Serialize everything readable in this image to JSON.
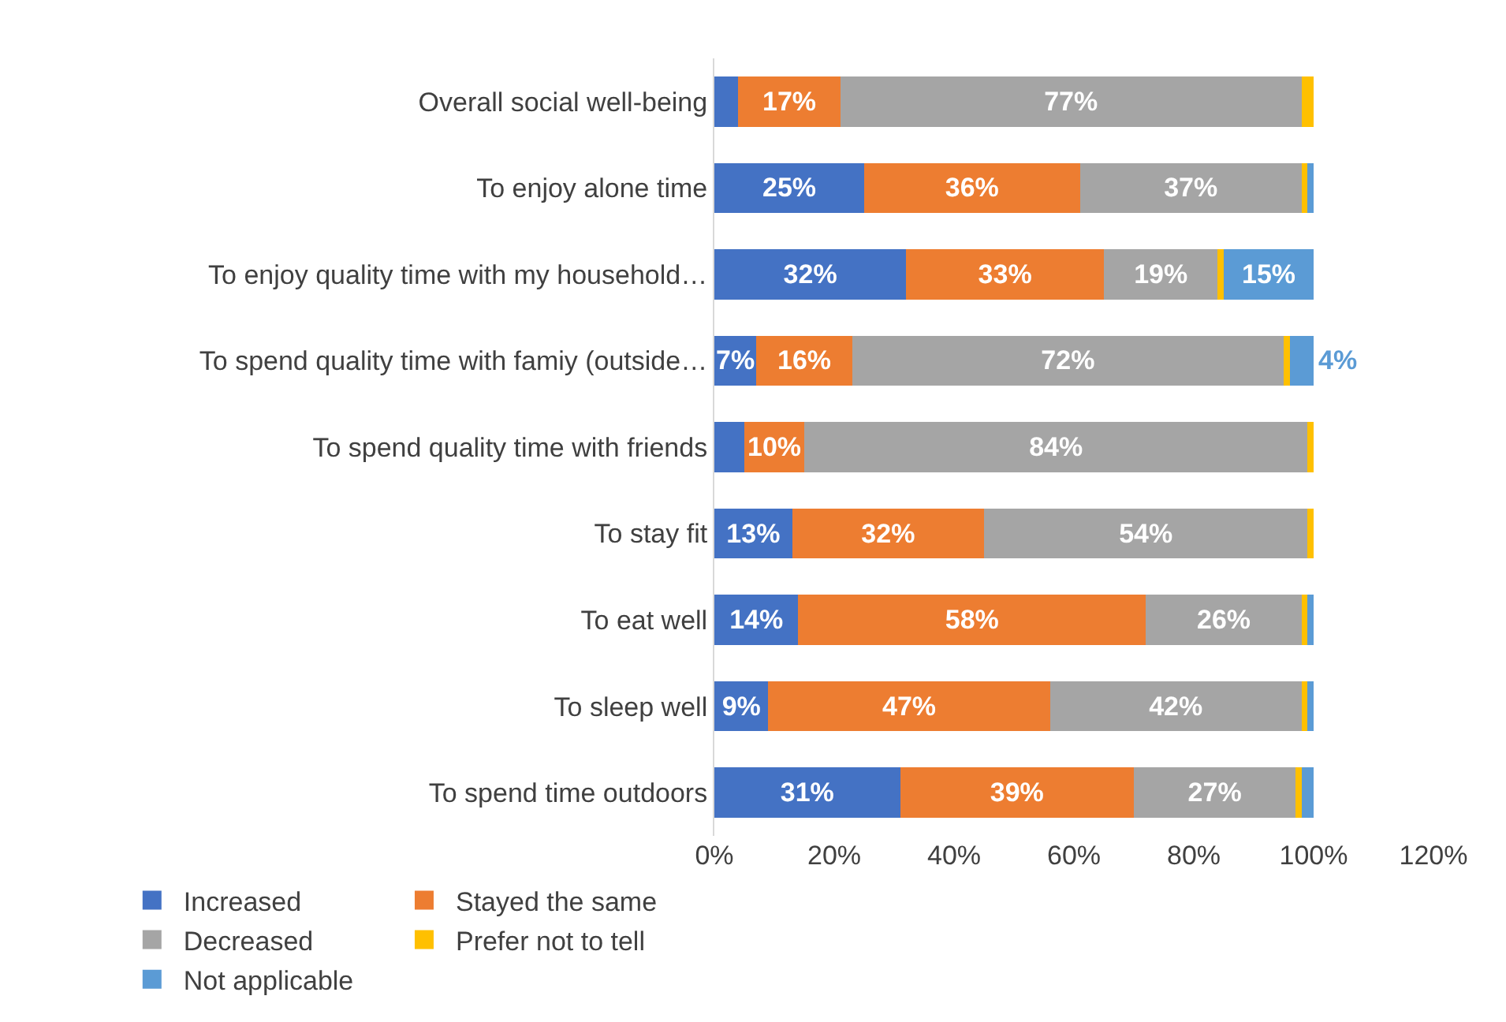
{
  "chart_data": {
    "type": "bar",
    "orientation": "horizontal",
    "stacked": true,
    "categories": [
      "Overall social well-being",
      "To enjoy alone time",
      "To enjoy quality time with my household…",
      "To spend quality time with famiy (outside…",
      "To spend quality time with friends",
      "To stay fit",
      "To eat well",
      "To sleep well",
      "To spend time outdoors"
    ],
    "series": [
      {
        "name": "Increased",
        "color": "#4472c4",
        "values": [
          4,
          25,
          32,
          7,
          5,
          13,
          14,
          9,
          31
        ],
        "value_labels": [
          null,
          "25%",
          "32%",
          "7%",
          null,
          "13%",
          "14%",
          "9%",
          "31%"
        ]
      },
      {
        "name": "Stayed the same",
        "color": "#ed7d31",
        "values": [
          17,
          36,
          33,
          16,
          10,
          32,
          58,
          47,
          39
        ],
        "value_labels": [
          "17%",
          "36%",
          "33%",
          "16%",
          "10%",
          "32%",
          "58%",
          "47%",
          "39%"
        ]
      },
      {
        "name": "Decreased",
        "color": "#a5a5a5",
        "values": [
          77,
          37,
          19,
          72,
          84,
          54,
          26,
          42,
          27
        ],
        "value_labels": [
          "77%",
          "37%",
          "19%",
          "72%",
          "84%",
          "54%",
          "26%",
          "42%",
          "27%"
        ]
      },
      {
        "name": "Prefer not to tell",
        "color": "#ffc000",
        "values": [
          2,
          1,
          1,
          1,
          1,
          1,
          1,
          1,
          1
        ],
        "value_labels": [
          null,
          null,
          null,
          null,
          null,
          null,
          null,
          null,
          null
        ]
      },
      {
        "name": "Not applicable",
        "color": "#5b9bd5",
        "values": [
          0,
          1,
          15,
          4,
          0,
          0,
          1,
          1,
          2
        ],
        "value_labels": [
          null,
          null,
          "15%",
          "4%",
          null,
          null,
          null,
          null,
          null
        ]
      }
    ],
    "xlim": [
      0,
      120
    ],
    "xticks": [
      {
        "value": 0,
        "label": "0%"
      },
      {
        "value": 20,
        "label": "20%"
      },
      {
        "value": 40,
        "label": "40%"
      },
      {
        "value": 60,
        "label": "60%"
      },
      {
        "value": 80,
        "label": "80%"
      },
      {
        "value": 100,
        "label": "100%"
      },
      {
        "value": 120,
        "label": "120%"
      }
    ],
    "legend": "bottom"
  }
}
